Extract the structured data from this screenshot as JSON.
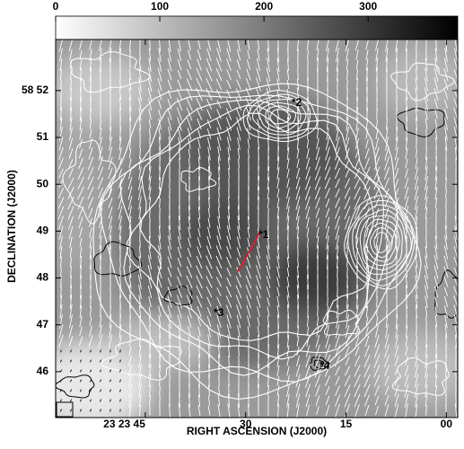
{
  "chart_data": {
    "type": "image",
    "xlabel": "RIGHT ASCENSION (J2000)",
    "ylabel": "DECLINATION (J2000)",
    "xlim": [
      58.4,
      -1.7
    ],
    "xticks": [
      {
        "value": 45,
        "label": "23 23 45"
      },
      30,
      15,
      {
        "value": 0,
        "label": "00"
      }
    ],
    "ylim": [
      45.02,
      53.09
    ],
    "yticks": [
      {
        "value": 52,
        "label": "58 52"
      },
      51,
      50,
      49,
      48,
      47,
      46
    ],
    "colorbar": {
      "lim": [
        0,
        386
      ],
      "ticks": [
        0,
        100,
        200,
        300
      ]
    },
    "annotations": [
      "*1",
      "*2",
      "*3",
      "*4"
    ]
  }
}
